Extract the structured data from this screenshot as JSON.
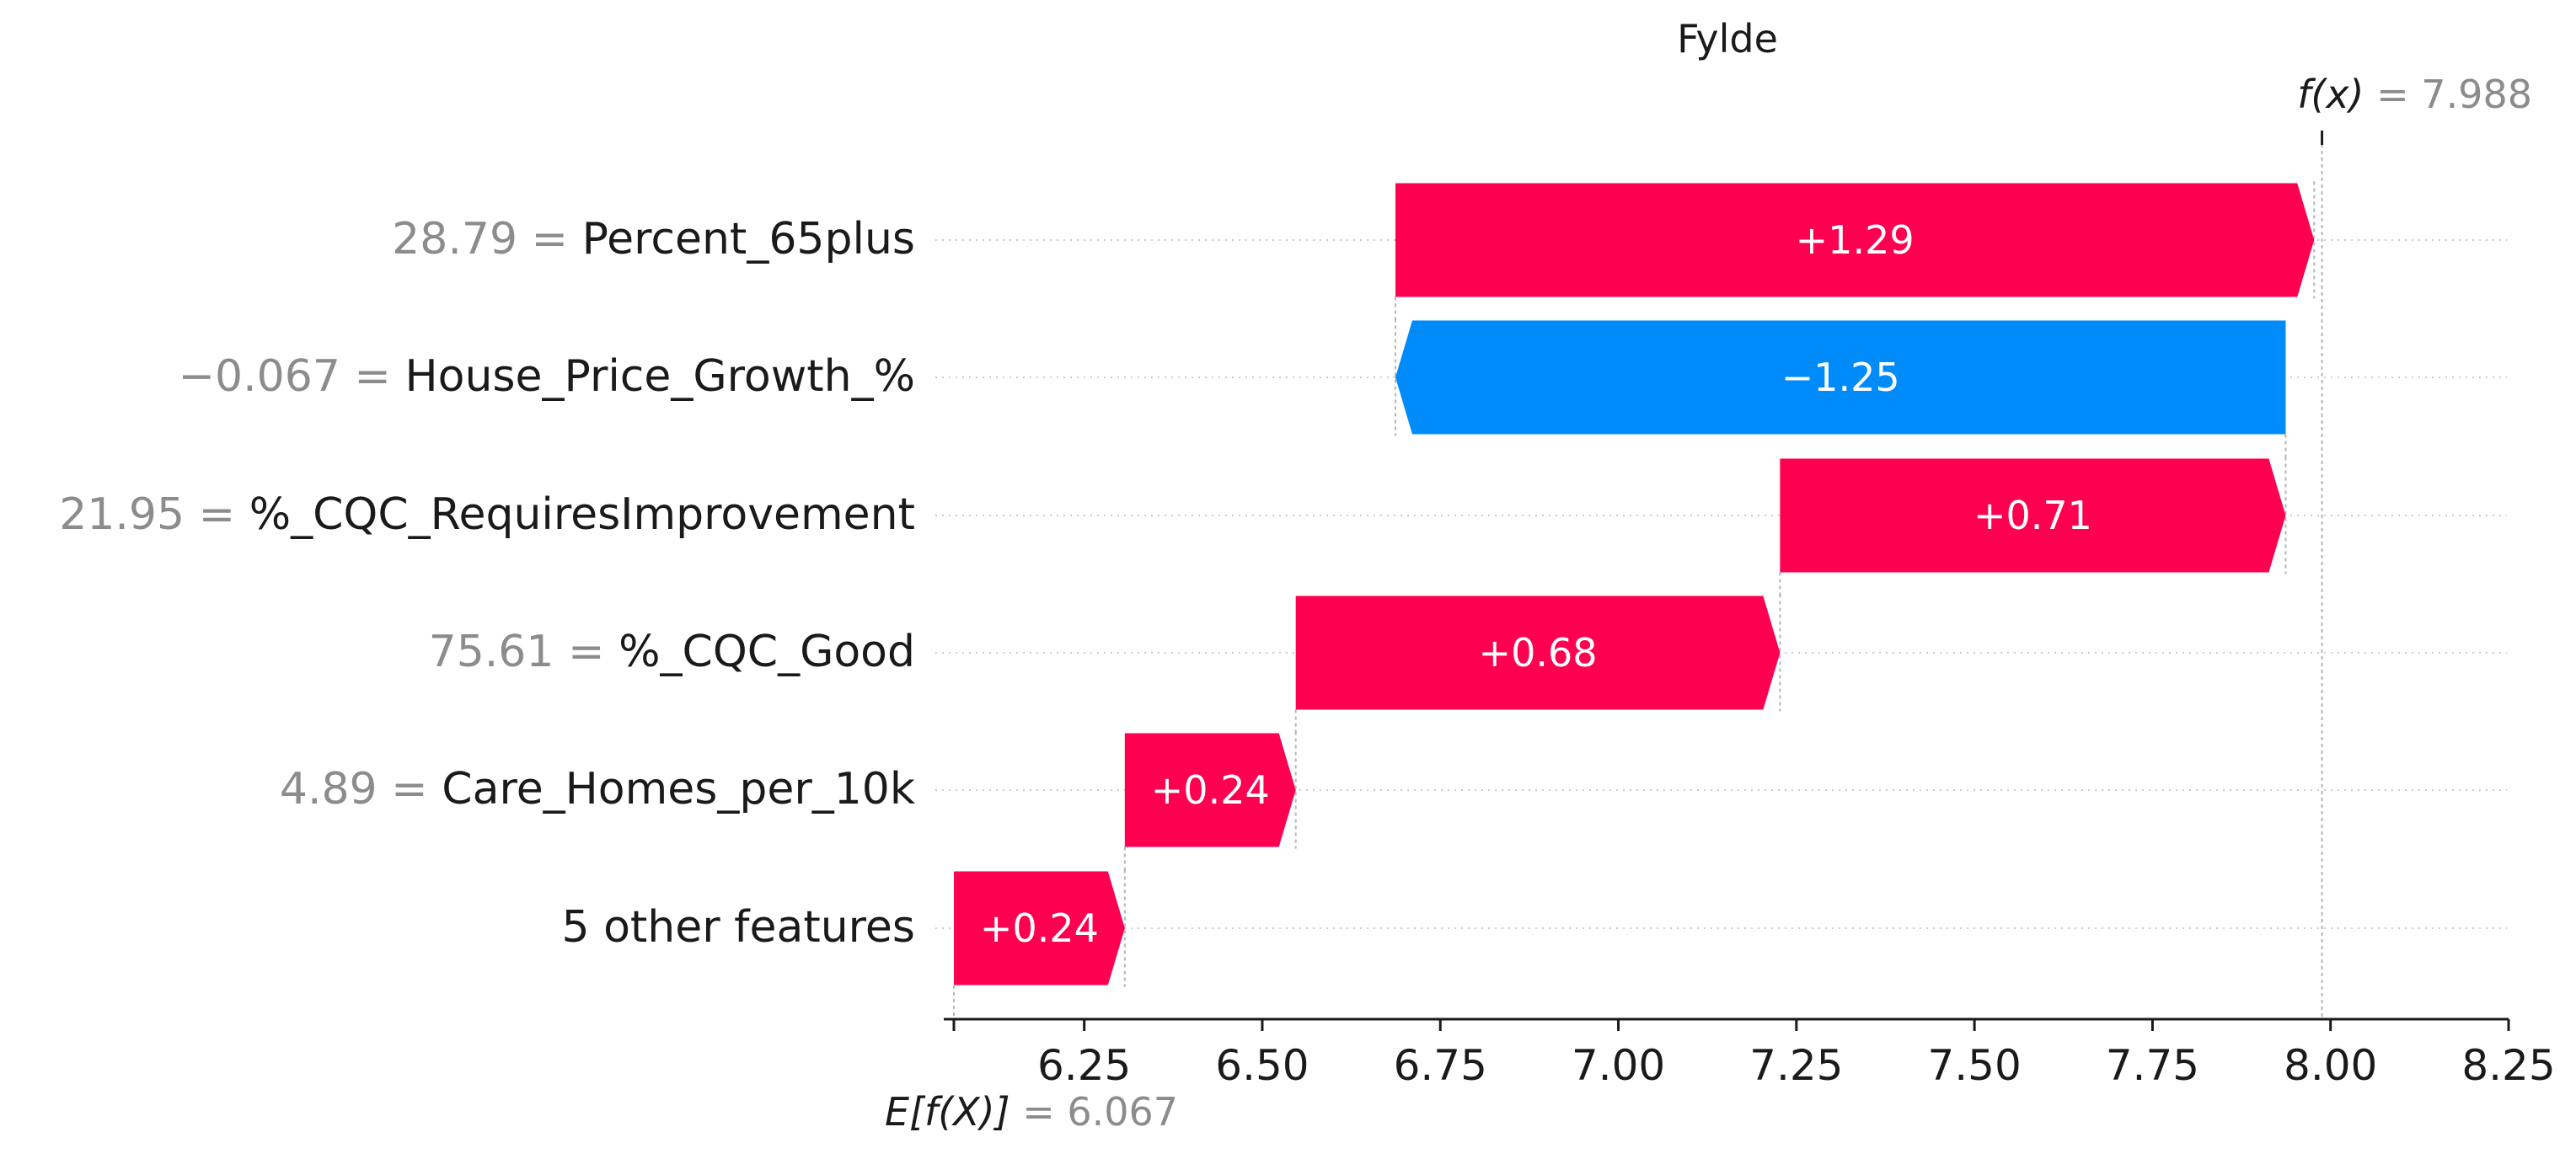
{
  "chart_data": {
    "type": "waterfall",
    "title": "Fylde",
    "base_value": 6.067,
    "base_value_label": "6.067",
    "final_value": 7.988,
    "final_value_label": "7.988",
    "final_label_prefix": "f(x)",
    "base_label_prefix": "E[f(X)]",
    "features": [
      {
        "value": "28.79",
        "name": "Percent_65plus",
        "contribution": 1.29,
        "contribution_label": "+1.29"
      },
      {
        "value": "−0.067",
        "name": "House_Price_Growth_%",
        "contribution": -1.25,
        "contribution_label": "−1.25"
      },
      {
        "value": "21.95",
        "name": "%_CQC_RequiresImprovement",
        "contribution": 0.71,
        "contribution_label": "+0.71"
      },
      {
        "value": "75.61",
        "name": "%_CQC_Good",
        "contribution": 0.68,
        "contribution_label": "+0.68"
      },
      {
        "value": "4.89",
        "name": "Care_Homes_per_10k",
        "contribution": 0.24,
        "contribution_label": "+0.24"
      },
      {
        "value": "",
        "name": "5 other features",
        "contribution": 0.24,
        "contribution_label": "+0.24"
      }
    ],
    "xlim": [
      6.05,
      8.25
    ],
    "xticks": [
      6.25,
      6.5,
      6.75,
      7.0,
      7.25,
      7.5,
      7.75,
      8.0,
      8.25
    ],
    "xtick_labels": [
      "6.25",
      "6.50",
      "6.75",
      "7.00",
      "7.25",
      "7.50",
      "7.75",
      "8.00",
      "8.25"
    ],
    "colors": {
      "positive": "#ff0051",
      "negative": "#008bfb",
      "muted": "#8c8c8c",
      "text": "#1a1a1a"
    }
  }
}
